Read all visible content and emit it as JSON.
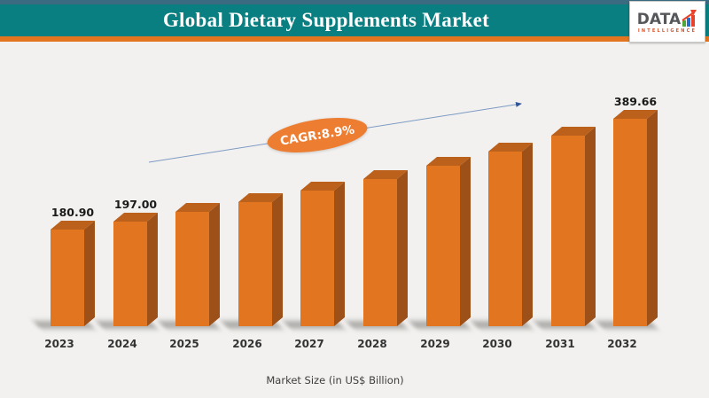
{
  "header": {
    "title": "Global Dietary Supplements Market",
    "teal_color": "#097F81",
    "top_strip_color": "#3A6B80",
    "orange_strip_color": "#E2751E"
  },
  "logo": {
    "text": "DATA",
    "subtext": "INTELLIGENCE",
    "bar_colors": [
      "#4CA83B",
      "#2470C8",
      "#E8432A"
    ],
    "arrow_color": "#E8432A"
  },
  "chart_data": {
    "type": "bar",
    "title": "Global Dietary Supplements Market",
    "xlabel": "Market Size (in US$ Billion)",
    "categories": [
      "2023",
      "2024",
      "2025",
      "2026",
      "2027",
      "2028",
      "2029",
      "2030",
      "2031",
      "2032"
    ],
    "values": [
      180.9,
      197.0,
      214.53,
      233.62,
      254.41,
      277.05,
      301.71,
      328.56,
      357.8,
      389.66
    ],
    "data_labels": [
      "180.90",
      "197.00",
      "",
      "",
      "",
      "",
      "",
      "",
      "",
      "389.66"
    ],
    "annotation": {
      "text": "CAGR:8.9%",
      "badge_color": "#ED7D31"
    },
    "bar_colors": {
      "front": "#E2751F",
      "top": "#BC611C",
      "side": "#9D5018"
    },
    "ylim": [
      0,
      420
    ],
    "grid": false,
    "legend": false
  }
}
